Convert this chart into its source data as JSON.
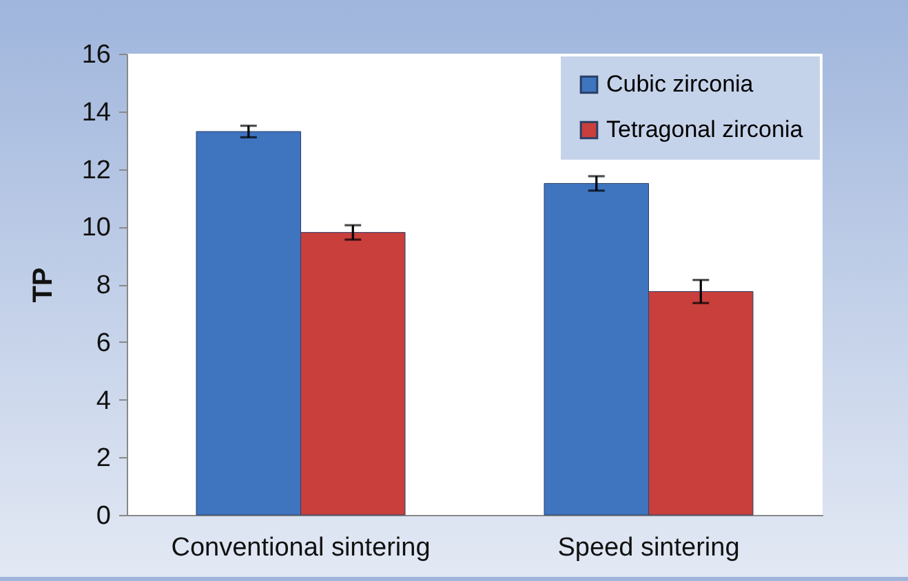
{
  "chart_data": {
    "type": "bar",
    "ylabel": "TP",
    "categories": [
      "Conventional sintering",
      "Speed sintering"
    ],
    "series": [
      {
        "name": "Cubic zirconia",
        "color": "#3f74bf",
        "values": [
          13.3,
          11.5
        ],
        "errors": [
          0.2,
          0.25
        ]
      },
      {
        "name": "Tetragonal zirconia",
        "color": "#c83f3c",
        "values": [
          9.8,
          7.75
        ],
        "errors": [
          0.25,
          0.4
        ]
      }
    ],
    "ylim": [
      0,
      16
    ],
    "yticks": [
      0,
      2,
      4,
      6,
      8,
      10,
      12,
      14,
      16
    ],
    "grid": false,
    "legend": "top right"
  }
}
